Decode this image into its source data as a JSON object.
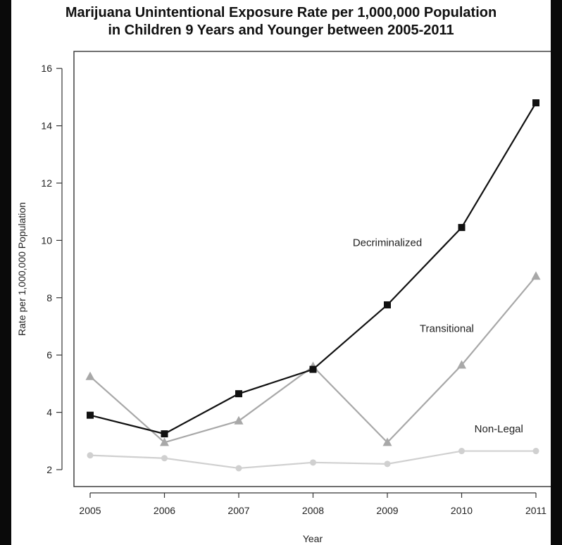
{
  "chart_data": {
    "type": "line",
    "title_line1": "Marijuana Unintentional Exposure Rate per 1,000,000 Population",
    "title_line2": "in Children 9 Years and Younger between 2005-2011",
    "xlabel": "Year",
    "ylabel": "Rate per 1,000,000 Population",
    "x": [
      "2005",
      "2006",
      "2007",
      "2008",
      "2009",
      "2010",
      "2011"
    ],
    "yticks": [
      "2",
      "4",
      "6",
      "8",
      "10",
      "12",
      "14",
      "16"
    ],
    "ylim": [
      1.5,
      16.5
    ],
    "grid": false,
    "series": [
      {
        "name": "Decriminalized",
        "values": [
          3.9,
          3.25,
          4.65,
          5.5,
          7.75,
          10.45,
          14.8
        ],
        "color": "#111111",
        "marker": "square",
        "label_anchor": [
          2009.0,
          9.8
        ]
      },
      {
        "name": "Transitional",
        "values": [
          5.25,
          2.95,
          3.7,
          5.6,
          2.95,
          5.65,
          8.75
        ],
        "color": "#a8a8a8",
        "marker": "triangle",
        "label_anchor": [
          2009.8,
          6.8
        ]
      },
      {
        "name": "Non-Legal",
        "values": [
          2.5,
          2.4,
          2.05,
          2.25,
          2.2,
          2.65,
          2.65
        ],
        "color": "#d0d0d0",
        "marker": "circle",
        "label_anchor": [
          2010.5,
          3.3
        ]
      }
    ]
  }
}
